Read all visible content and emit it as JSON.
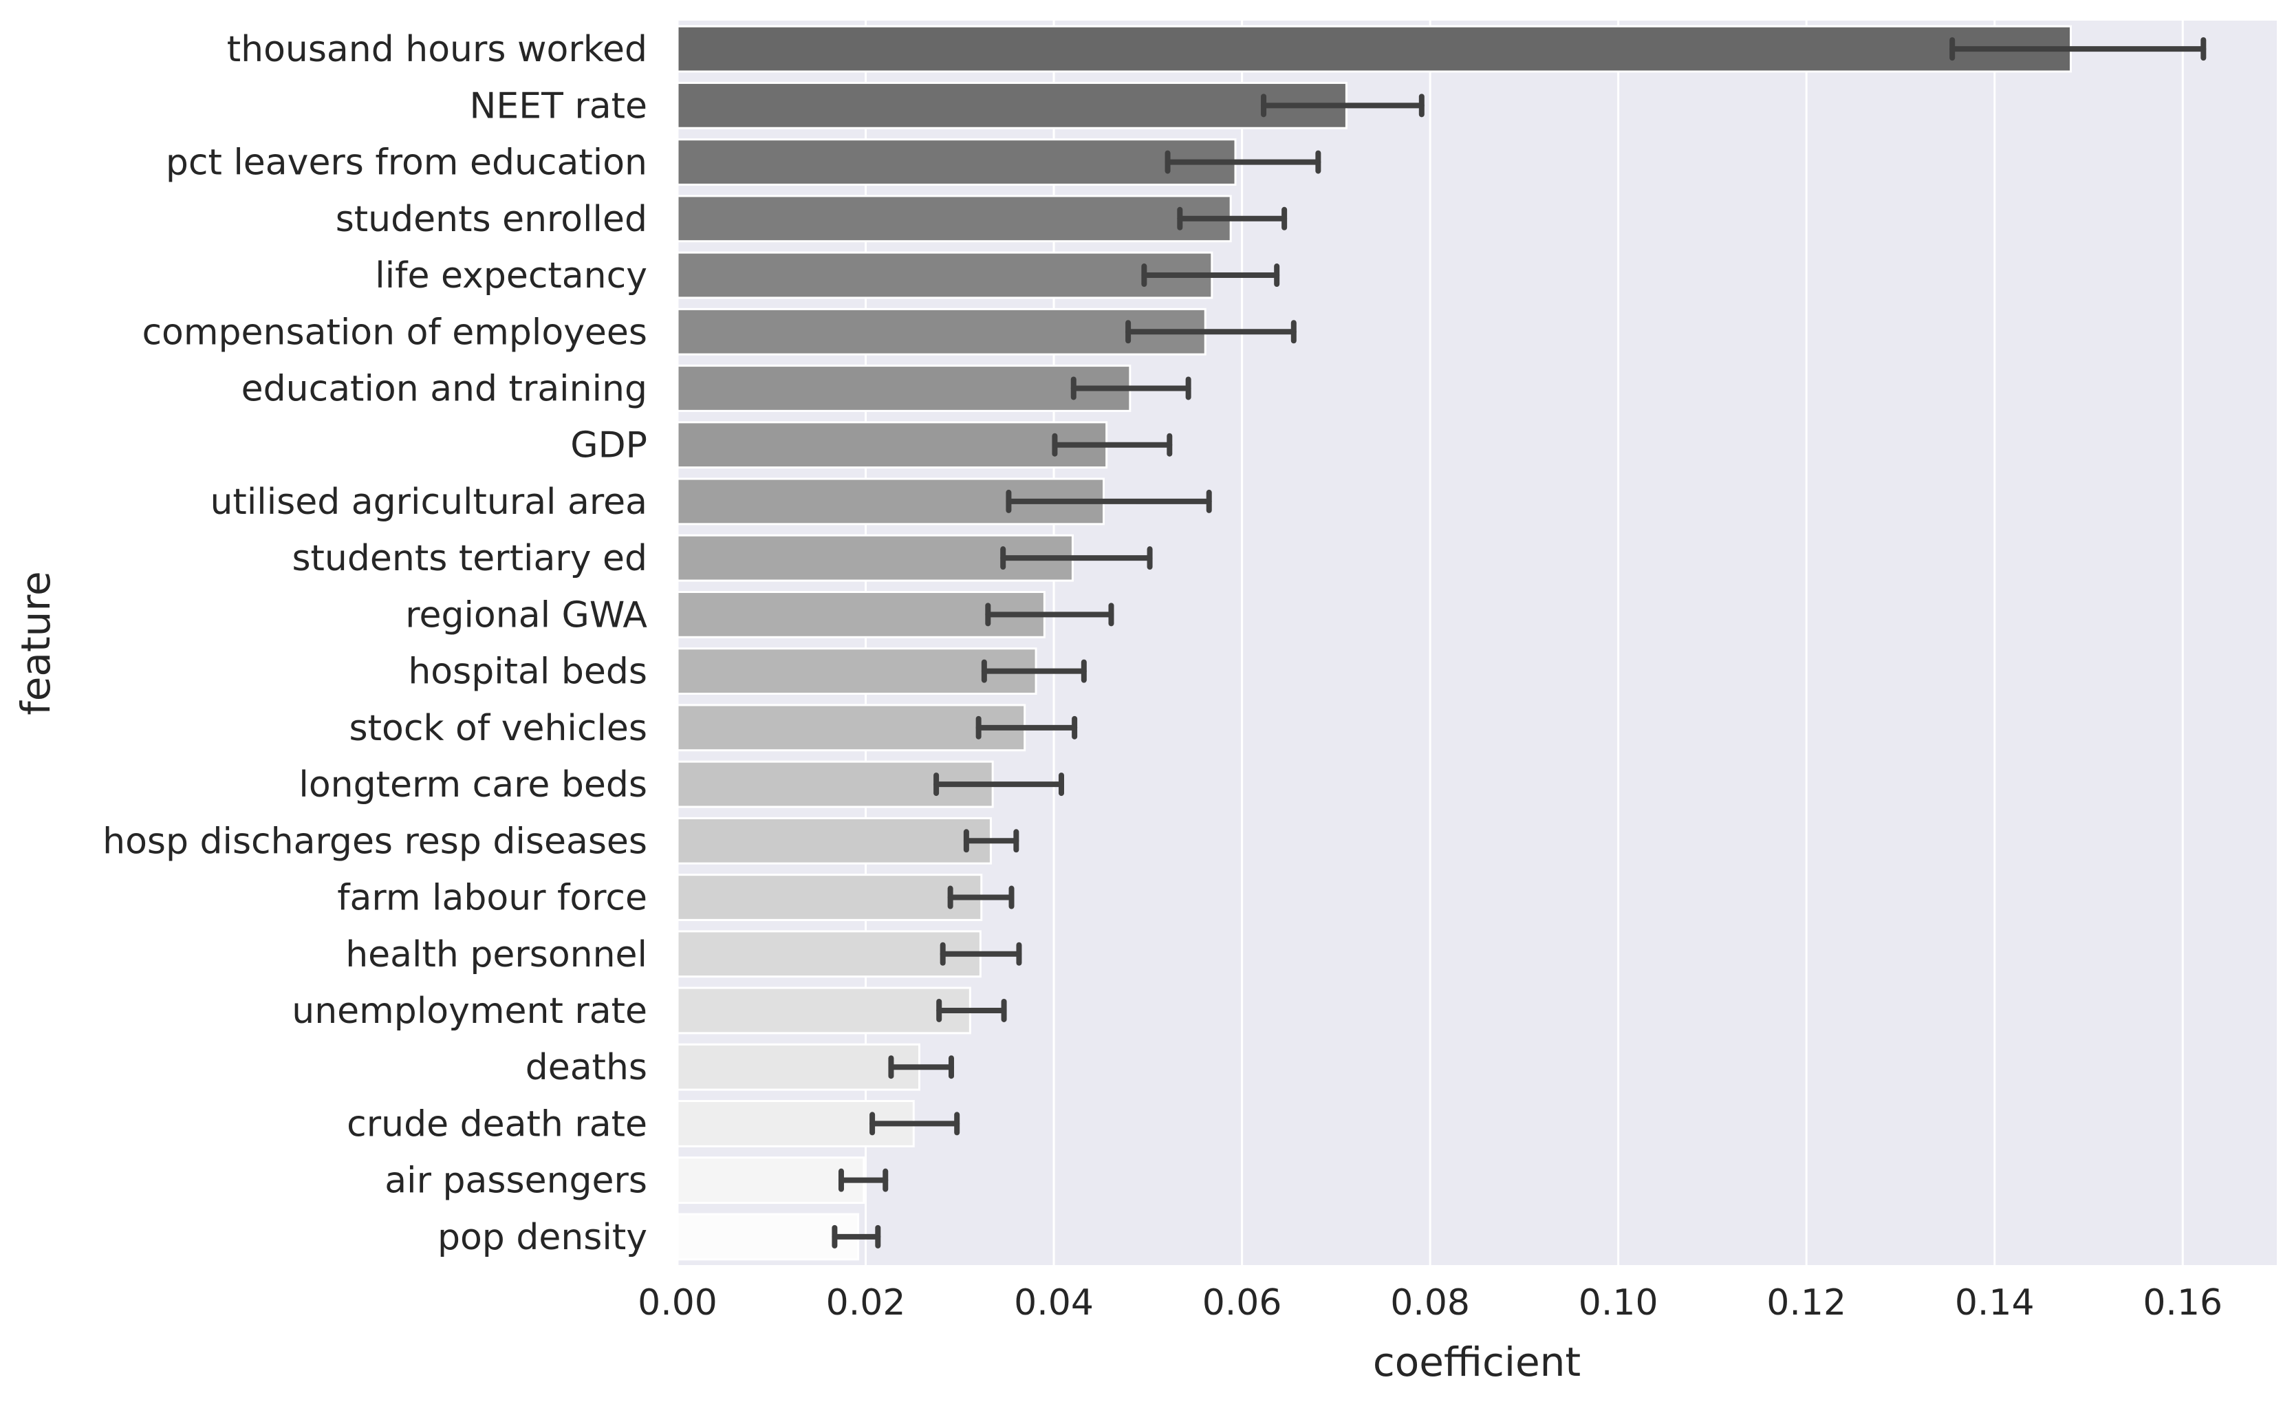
{
  "chart_data": {
    "type": "bar",
    "orientation": "horizontal",
    "xlabel": "coefficient",
    "ylabel": "feature",
    "xlim": [
      0,
      0.17
    ],
    "x_ticks": [
      "0.00",
      "0.02",
      "0.04",
      "0.06",
      "0.08",
      "0.10",
      "0.12",
      "0.14",
      "0.16"
    ],
    "grid": true,
    "background": "#eaeaf2",
    "error_bar_color": "#404040",
    "bar_color_darkest": "#686868",
    "bar_color_lightest": "#fcfcfc",
    "categories": [
      "thousand hours worked",
      "NEET rate",
      "pct leavers from education",
      "students enrolled",
      "life expectancy",
      "compensation of employees",
      "education and training",
      "GDP",
      "utilised agricultural area",
      "students tertiary ed",
      "regional GWA",
      "hospital beds",
      "stock of vehicles",
      "longterm care beds",
      "hosp discharges resp diseases",
      "farm labour force",
      "health personnel",
      "unemployment rate",
      "deaths",
      "crude death rate",
      "air passengers",
      "pop density"
    ],
    "values": [
      0.1481,
      0.0711,
      0.0593,
      0.0588,
      0.0568,
      0.0561,
      0.0481,
      0.0456,
      0.0453,
      0.042,
      0.039,
      0.0381,
      0.0369,
      0.0335,
      0.0333,
      0.0323,
      0.0322,
      0.0311,
      0.0257,
      0.0251,
      0.0198,
      0.0192
    ],
    "error_low": [
      0.1355,
      0.0623,
      0.0521,
      0.0534,
      0.0496,
      0.0479,
      0.0421,
      0.0401,
      0.0352,
      0.0346,
      0.033,
      0.0326,
      0.032,
      0.0275,
      0.0307,
      0.029,
      0.0282,
      0.0278,
      0.0227,
      0.0207,
      0.0174,
      0.0167
    ],
    "error_high": [
      0.1622,
      0.0791,
      0.0681,
      0.0645,
      0.0637,
      0.0655,
      0.0543,
      0.0523,
      0.0565,
      0.0502,
      0.0461,
      0.0432,
      0.0422,
      0.0408,
      0.036,
      0.0355,
      0.0363,
      0.0347,
      0.0291,
      0.0297,
      0.0221,
      0.0213
    ]
  }
}
